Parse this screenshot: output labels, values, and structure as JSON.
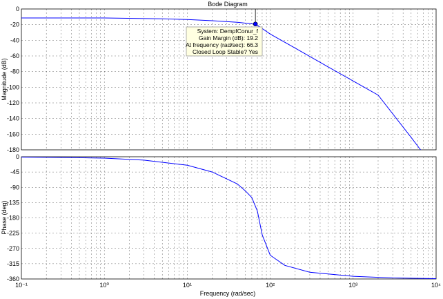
{
  "chart_data": [
    {
      "type": "line",
      "title": "Bode Diagram",
      "ylabel": "Magnitude (dB)",
      "xlabel": "",
      "x_scale": "log",
      "xlim": [
        0.1,
        10000
      ],
      "ylim": [
        -180,
        0
      ],
      "yticks": [
        0,
        -20,
        -40,
        -60,
        -80,
        -100,
        -120,
        -140,
        -160,
        -180
      ],
      "grid": true,
      "series": [
        {
          "color": "#0000ff",
          "points": [
            [
              0.1,
              -11.5
            ],
            [
              1,
              -11.5
            ],
            [
              5,
              -12.5
            ],
            [
              10,
              -13.5
            ],
            [
              20,
              -15
            ],
            [
              40,
              -17
            ],
            [
              60,
              -19
            ],
            [
              66.3,
              -19.2
            ],
            [
              80,
              -25
            ],
            [
              100,
              -32
            ],
            [
              200,
              -50
            ],
            [
              500,
              -74
            ],
            [
              1000,
              -92
            ],
            [
              2000,
              -110
            ],
            [
              5000,
              -164
            ],
            [
              6500,
              -180
            ]
          ]
        }
      ],
      "marker": {
        "x": 66.3,
        "y": -19.2,
        "color": "#0000ff"
      },
      "datatip": {
        "lines": [
          "System: DempfConur_f",
          "Gain Margin (dB): 19.2",
          "At frequency (rad/sec): 66.3",
          "Closed Loop Stable? Yes"
        ]
      }
    },
    {
      "type": "line",
      "ylabel": "Phase (deg)",
      "xlabel": "Frequency  (rad/sec)",
      "x_scale": "log",
      "xlim": [
        0.1,
        10000
      ],
      "ylim": [
        -360,
        0
      ],
      "yticks": [
        0,
        -45,
        -90,
        -135,
        -180,
        -225,
        -270,
        -315,
        -360
      ],
      "grid": true,
      "series": [
        {
          "color": "#0000ff",
          "points": [
            [
              0.1,
              -1
            ],
            [
              0.3,
              -2
            ],
            [
              1,
              -4
            ],
            [
              3,
              -10
            ],
            [
              10,
              -25
            ],
            [
              20,
              -45
            ],
            [
              40,
              -80
            ],
            [
              50,
              -100
            ],
            [
              60,
              -120
            ],
            [
              70,
              -160
            ],
            [
              80,
              -230
            ],
            [
              100,
              -290
            ],
            [
              150,
              -320
            ],
            [
              300,
              -340
            ],
            [
              1000,
              -352
            ],
            [
              3000,
              -357
            ],
            [
              10000,
              -359
            ]
          ]
        }
      ]
    }
  ],
  "xticks": {
    "values": [
      0.1,
      1,
      10,
      100,
      1000,
      10000
    ],
    "labels": [
      "10⁻¹",
      "10⁰",
      "10¹",
      "10²",
      "10³",
      "10⁴"
    ]
  }
}
